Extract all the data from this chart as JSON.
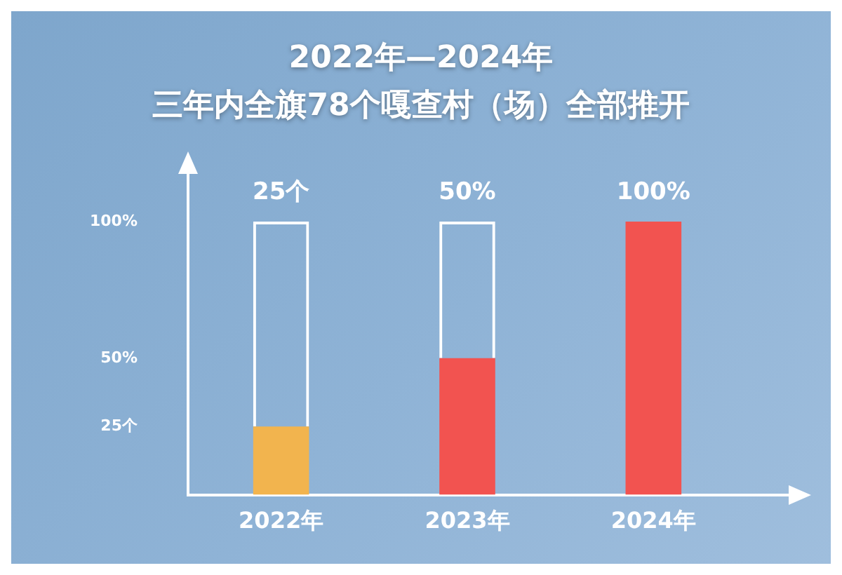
{
  "chart_data": {
    "type": "bar",
    "title": "2022年—2024年",
    "subtitle": "三年内全旗78个嘎查村（场）全部推开",
    "categories": [
      "2022年",
      "2023年",
      "2024年"
    ],
    "stacked": true,
    "series": [
      {
        "colors": [
          "#f2b44e",
          "#f25350",
          "#f25350"
        ],
        "values": [
          25,
          50,
          100
        ]
      },
      {
        "color": "#ffffff",
        "values": [
          75,
          50,
          null
        ]
      }
    ],
    "ylim": [
      0,
      100
    ],
    "yticks": [
      {
        "value": 25,
        "label": "25个"
      },
      {
        "value": 50,
        "label": "50%"
      },
      {
        "value": 100,
        "label": "100%"
      }
    ],
    "annotations": [
      {
        "text": "25个",
        "x": "2022年",
        "y": 100
      },
      {
        "text": "50%",
        "x": "2023年",
        "y": 100
      },
      {
        "text": "100%",
        "x": "2024年",
        "y": 100
      }
    ],
    "grid": false,
    "legend": false
  }
}
